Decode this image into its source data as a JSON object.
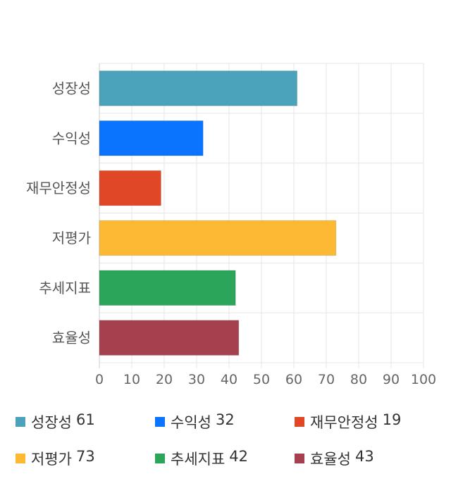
{
  "chart_data": {
    "type": "bar",
    "orientation": "horizontal",
    "categories": [
      "성장성",
      "수익성",
      "재무안정성",
      "저평가",
      "추세지표",
      "효율성"
    ],
    "values": [
      61,
      32,
      19,
      73,
      42,
      43
    ],
    "colors": [
      "#4aa3ba",
      "#0a74ff",
      "#e04726",
      "#fdb933",
      "#2ba55a",
      "#a5414e"
    ],
    "xlim": [
      0,
      100
    ],
    "xticks": [
      "0",
      "10",
      "20",
      "30",
      "40",
      "50",
      "60",
      "70",
      "80",
      "90",
      "100"
    ],
    "grid": true,
    "legend_position": "bottom",
    "legend": [
      {
        "name": "성장성",
        "value": "61"
      },
      {
        "name": "수익성",
        "value": "32"
      },
      {
        "name": "재무안정성",
        "value": "19"
      },
      {
        "name": "저평가",
        "value": "73"
      },
      {
        "name": "추세지표",
        "value": "42"
      },
      {
        "name": "효율성",
        "value": "43"
      }
    ]
  }
}
